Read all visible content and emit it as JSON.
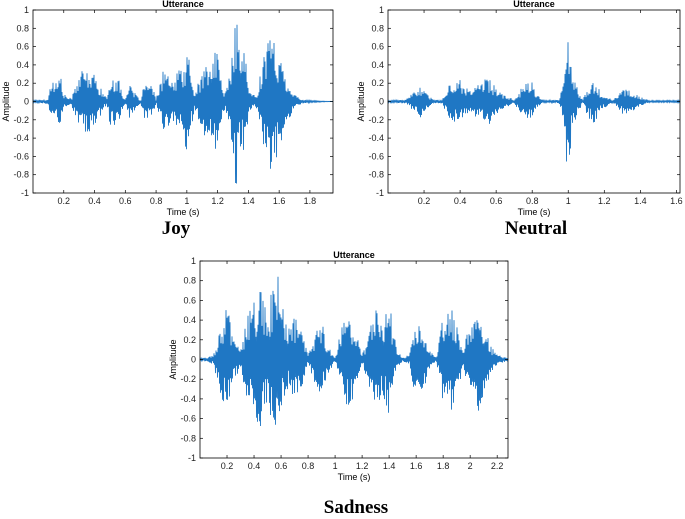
{
  "panel_captions": [
    "Joy",
    "Neutral",
    "Sadness"
  ],
  "colors": {
    "waveform": "#1f77c4",
    "axis": "#000000",
    "grid_tick_text": "#222222"
  },
  "chart_data": [
    {
      "type": "line",
      "title": "Utterance",
      "xlabel": "Time (s)",
      "ylabel": "Amplitude",
      "xlim": [
        0,
        1.95
      ],
      "ylim": [
        -1,
        1
      ],
      "xticks": [
        0.2,
        0.4,
        0.6,
        0.8,
        1,
        1.2,
        1.4,
        1.6,
        1.8
      ],
      "xtick_labels": [
        "0.2",
        "0.4",
        "0.6",
        "0.8",
        "1",
        "1.2",
        "1.4",
        "1.6",
        "1.8"
      ],
      "yticks": [
        -1,
        -0.8,
        -0.6,
        -0.4,
        -0.2,
        0,
        0.2,
        0.4,
        0.6,
        0.8,
        1
      ],
      "ytick_labels": [
        "-1",
        "-0.8",
        "-0.6",
        "-0.4",
        "-0.2",
        "0",
        "0.2",
        "0.4",
        "0.6",
        "0.8",
        "1"
      ],
      "grid": false,
      "series": [
        {
          "x": [
            0.0,
            0.1,
            0.12,
            0.15,
            0.18,
            0.2,
            0.25,
            0.28,
            0.3,
            0.35,
            0.4,
            0.45,
            0.48,
            0.5,
            0.55,
            0.56,
            0.58,
            0.6,
            0.62,
            0.65,
            0.7,
            0.72,
            0.75,
            0.78,
            0.8,
            0.85,
            0.9,
            0.95,
            0.98,
            1.0,
            1.05,
            1.1,
            1.15,
            1.2,
            1.22,
            1.25,
            1.3,
            1.32,
            1.35,
            1.38,
            1.4,
            1.45,
            1.5,
            1.55,
            1.6,
            1.65,
            1.7,
            1.75,
            1.8,
            1.95
          ],
          "y": [
            0.01,
            0.03,
            0.28,
            0.22,
            0.3,
            0.08,
            0.03,
            0.22,
            0.32,
            0.35,
            0.3,
            0.12,
            0.03,
            0.26,
            0.3,
            0.22,
            0.1,
            0.02,
            0.2,
            0.12,
            0.01,
            0.18,
            0.2,
            0.15,
            0.02,
            0.4,
            0.2,
            0.35,
            0.38,
            0.62,
            0.08,
            0.35,
            0.42,
            0.6,
            0.3,
            0.08,
            0.55,
            1.0,
            0.5,
            0.55,
            0.15,
            0.05,
            0.55,
            0.78,
            0.52,
            0.28,
            0.08,
            0.02,
            0.01,
            0.0
          ]
        }
      ]
    },
    {
      "type": "line",
      "title": "Utterance",
      "xlabel": "Time (s)",
      "ylabel": "Amplitude",
      "xlim": [
        0,
        1.62
      ],
      "ylim": [
        -1,
        1
      ],
      "xticks": [
        0.2,
        0.4,
        0.6,
        0.8,
        1,
        1.2,
        1.4,
        1.6
      ],
      "xtick_labels": [
        "0.2",
        "0.4",
        "0.6",
        "0.8",
        "1",
        "1.2",
        "1.4",
        "1.6"
      ],
      "yticks": [
        -1,
        -0.8,
        -0.6,
        -0.4,
        -0.2,
        0,
        0.2,
        0.4,
        0.6,
        0.8,
        1
      ],
      "ytick_labels": [
        "-1",
        "-0.8",
        "-0.6",
        "-0.4",
        "-0.2",
        "0",
        "0.2",
        "0.4",
        "0.6",
        "0.8",
        "1"
      ],
      "grid": false,
      "series": [
        {
          "x": [
            0.0,
            0.1,
            0.15,
            0.18,
            0.2,
            0.25,
            0.3,
            0.33,
            0.38,
            0.42,
            0.45,
            0.5,
            0.55,
            0.58,
            0.62,
            0.7,
            0.75,
            0.8,
            0.82,
            0.85,
            0.88,
            0.95,
            0.98,
            1.0,
            1.02,
            1.08,
            1.12,
            1.15,
            1.18,
            1.25,
            1.3,
            1.35,
            1.4,
            1.45,
            1.5,
            1.62
          ],
          "y": [
            0.01,
            0.02,
            0.12,
            0.18,
            0.12,
            0.02,
            0.02,
            0.16,
            0.26,
            0.22,
            0.12,
            0.2,
            0.3,
            0.2,
            0.1,
            0.02,
            0.18,
            0.22,
            0.1,
            0.02,
            0.01,
            0.02,
            0.3,
            1.0,
            0.3,
            0.02,
            0.22,
            0.25,
            0.1,
            0.01,
            0.15,
            0.12,
            0.05,
            0.01,
            0.01,
            0.01
          ]
        }
      ]
    },
    {
      "type": "line",
      "title": "Utterance",
      "xlabel": "Time (s)",
      "ylabel": "Amplitude",
      "xlim": [
        0,
        2.28
      ],
      "ylim": [
        -1,
        1
      ],
      "xticks": [
        0.2,
        0.4,
        0.6,
        0.8,
        1,
        1.2,
        1.4,
        1.6,
        1.8,
        2,
        2.2
      ],
      "xtick_labels": [
        "0.2",
        "0.4",
        "0.6",
        "0.8",
        "1",
        "1.2",
        "1.4",
        "1.6",
        "1.8",
        "2",
        "2.2"
      ],
      "yticks": [
        -1,
        -0.8,
        -0.6,
        -0.4,
        -0.2,
        0,
        0.2,
        0.4,
        0.6,
        0.8,
        1
      ],
      "ytick_labels": [
        "-1",
        "-0.8",
        "-0.6",
        "-0.4",
        "-0.2",
        "0",
        "0.2",
        "0.4",
        "0.6",
        "0.8",
        "1"
      ],
      "grid": false,
      "series": [
        {
          "x": [
            0.0,
            0.05,
            0.1,
            0.15,
            0.2,
            0.25,
            0.3,
            0.35,
            0.4,
            0.45,
            0.5,
            0.55,
            0.58,
            0.6,
            0.65,
            0.7,
            0.75,
            0.8,
            0.85,
            0.9,
            0.95,
            1.0,
            1.05,
            1.1,
            1.15,
            1.2,
            1.25,
            1.3,
            1.35,
            1.4,
            1.45,
            1.5,
            1.55,
            1.6,
            1.65,
            1.7,
            1.75,
            1.8,
            1.85,
            1.9,
            1.95,
            2.0,
            2.05,
            2.1,
            2.15,
            2.2,
            2.28
          ],
          "y": [
            0.01,
            0.02,
            0.05,
            0.35,
            0.55,
            0.25,
            0.08,
            0.45,
            0.6,
            0.7,
            0.5,
            0.85,
            0.95,
            0.6,
            0.3,
            0.45,
            0.3,
            0.05,
            0.25,
            0.4,
            0.15,
            0.02,
            0.35,
            0.55,
            0.3,
            0.05,
            0.25,
            0.6,
            0.35,
            0.6,
            0.15,
            0.02,
            0.05,
            0.45,
            0.35,
            0.1,
            0.02,
            0.45,
            0.6,
            0.35,
            0.1,
            0.4,
            0.55,
            0.45,
            0.15,
            0.05,
            0.01
          ]
        }
      ]
    }
  ]
}
